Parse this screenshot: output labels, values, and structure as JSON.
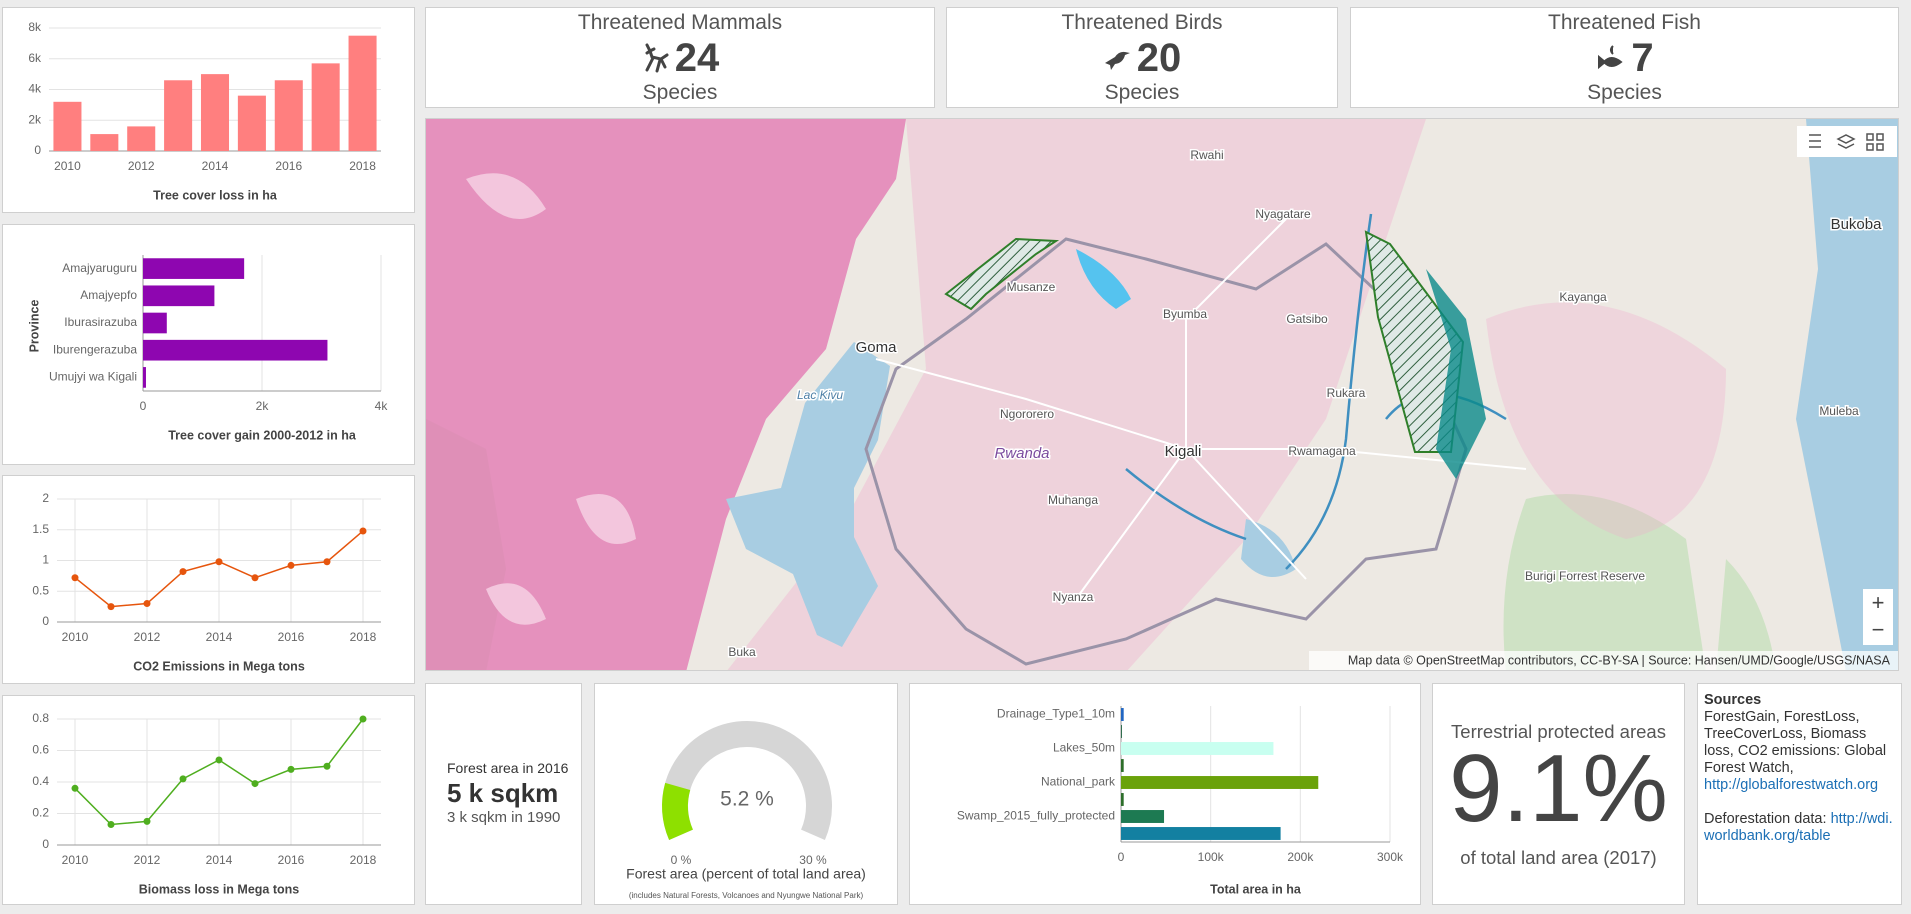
{
  "counters": [
    {
      "title": "Threatened Mammals",
      "value": 24,
      "unit": "Species"
    },
    {
      "title": "Threatened Birds",
      "value": 20,
      "unit": "Species"
    },
    {
      "title": "Threatened Fish",
      "value": 7,
      "unit": "Species"
    }
  ],
  "forest_area": {
    "title": "Forest area in 2016",
    "value": "5 k sqkm",
    "subtitle": "3 k sqkm in 1990"
  },
  "protected": {
    "title": "Terrestrial protected areas",
    "value": "9.1%",
    "subtitle": "of total land area (2017)"
  },
  "sources": {
    "title": "Sources",
    "text1": "ForestGain, ForestLoss, TreeCoverLoss, Biomass loss, CO2 emissions: Global Forest Watch,",
    "link1": "http://globalforestwatch.org",
    "text2": "Deforestation data:",
    "link2": "http://wdi.worldbank.org/table"
  },
  "map": {
    "attribution": "Map data © OpenStreetMap contributors, CC-BY-SA | Source: Hansen/UMD/Google/USGS/NASA",
    "zoom_in": "+",
    "zoom_out": "−",
    "labels": [
      "Rwahi",
      "Nyagatare",
      "Bukoba",
      "Musanze",
      "Byumba",
      "Gatsibo",
      "Kayanga",
      "Goma",
      "Lac Kivu",
      "Rukara",
      "Muleba",
      "Ngororero",
      "Kigali",
      "Rwanda",
      "Rwamagana",
      "Muhanga",
      "Burigi Forrest Reserve",
      "Nyanza",
      "Buka"
    ]
  },
  "chart_data": [
    {
      "type": "bar",
      "orientation": "vertical",
      "xlabel": "Tree cover loss in ha",
      "categories": [
        "2010",
        null,
        "2012",
        null,
        "2014",
        null,
        "2016",
        null,
        "2018"
      ],
      "values": [
        3200,
        1100,
        1600,
        4600,
        5000,
        3600,
        4600,
        5700,
        7500
      ],
      "color": "#ff7f7f",
      "ylim": [
        0,
        8000
      ],
      "yticks": [
        0,
        {
          "value": 2000,
          "label": "2k"
        },
        {
          "value": 4000,
          "label": "4k"
        },
        {
          "value": 6000,
          "label": "6k"
        },
        {
          "value": 8000,
          "label": "8k"
        }
      ],
      "grid": true
    },
    {
      "type": "bar",
      "orientation": "horizontal",
      "xlabel": "Tree cover gain 2000-2012 in ha",
      "ylabel": "Province",
      "categories": [
        "Amajyaruguru",
        "Amajyepfo",
        "Iburasirazuba",
        "Iburengerazuba",
        "Umujyi wa Kigali"
      ],
      "values": [
        1700,
        1200,
        400,
        3100,
        50
      ],
      "color": "#8e06b0",
      "xlim": [
        0,
        4000
      ],
      "xticks": [
        0,
        {
          "value": 2000,
          "label": "2k"
        },
        {
          "value": 4000,
          "label": "4k"
        }
      ],
      "grid": true
    },
    {
      "type": "line",
      "xlabel": "CO2 Emissions in Mega tons",
      "x": [
        2010,
        2011,
        2012,
        2013,
        2014,
        2015,
        2016,
        2017,
        2018
      ],
      "values": [
        0.72,
        0.25,
        0.3,
        0.82,
        0.98,
        0.72,
        0.92,
        0.98,
        1.48
      ],
      "color": "#e6550d",
      "xlim": [
        2009.5,
        2018.5
      ],
      "xticks": [
        2010,
        2012,
        2014,
        2016,
        2018
      ],
      "ylim": [
        0,
        2
      ],
      "yticks": [
        0,
        0.5,
        1,
        1.5,
        2
      ],
      "grid": true
    },
    {
      "type": "line",
      "xlabel": "Biomass loss in Mega tons",
      "x": [
        2010,
        2011,
        2012,
        2013,
        2014,
        2015,
        2016,
        2017,
        2018
      ],
      "values": [
        0.36,
        0.13,
        0.15,
        0.42,
        0.54,
        0.39,
        0.48,
        0.5,
        0.8
      ],
      "color": "#4fae1f",
      "xlim": [
        2009.5,
        2018.5
      ],
      "xticks": [
        2010,
        2012,
        2014,
        2016,
        2018
      ],
      "ylim": [
        0,
        0.8
      ],
      "yticks": [
        0,
        0.2,
        0.4,
        0.6,
        0.8
      ],
      "grid": true
    },
    {
      "type": "gauge",
      "title": "Forest area (percent of total land area)",
      "subtitle": "(includes Natural Forests, Volcanoes and Nyungwe  National Park)",
      "value": 5.2,
      "value_label": "5.2 %",
      "color": "#8ee000",
      "track_color": "#d6d6d6",
      "ylim": [
        0,
        30
      ],
      "yticks": [
        {
          "value": 0,
          "label": "0 %"
        },
        {
          "value": 30,
          "label": "30 %"
        }
      ]
    },
    {
      "type": "bar",
      "orientation": "horizontal",
      "xlabel": "Total area in ha",
      "categories": [
        "Drainage_Type1_10m",
        null,
        "Lakes_50m",
        null,
        "National_park",
        null,
        "Swamp_2015_fully_protected",
        null
      ],
      "values": [
        3000,
        1000,
        170000,
        3000,
        220000,
        3000,
        48000,
        178000
      ],
      "colors": [
        "#2166c2",
        "#1b5e3b",
        "#c8fff0",
        "#2d6e2a",
        "#6aa20a",
        "#2d6e2a",
        "#1d7a52",
        "#1380a1"
      ],
      "xlim": [
        0,
        300000
      ],
      "xticks": [
        0,
        {
          "value": 100000,
          "label": "100k"
        },
        {
          "value": 200000,
          "label": "200k"
        },
        {
          "value": 300000,
          "label": "300k"
        }
      ],
      "grid": true
    }
  ]
}
